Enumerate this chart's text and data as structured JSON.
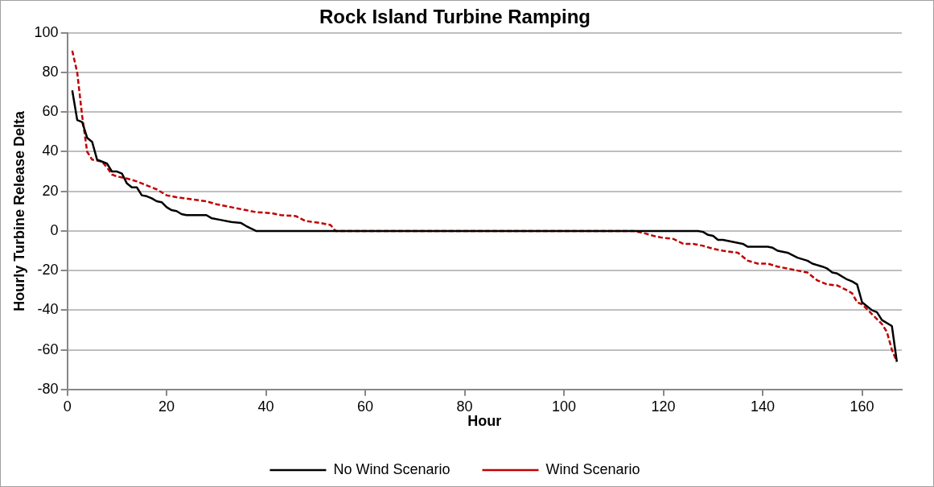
{
  "chart_data": {
    "type": "line",
    "title": "Rock Island Turbine Ramping",
    "xlabel": "Hour",
    "ylabel": "Hourly Turbine Release Delta",
    "xlim": [
      0,
      168
    ],
    "xticks": [
      0,
      20,
      40,
      60,
      80,
      100,
      120,
      140,
      160
    ],
    "ylim": [
      -80,
      100
    ],
    "yticks": [
      -80,
      -60,
      -40,
      -20,
      0,
      20,
      40,
      60,
      80,
      100
    ],
    "grid": "y",
    "legend": "bottom",
    "marker": "none",
    "series": [
      {
        "name": "No Wind Scenario",
        "color": "#000000",
        "line_style": "solid",
        "x": [
          1,
          2,
          3,
          4,
          5,
          6,
          7,
          8,
          9,
          10,
          11,
          12,
          13,
          14,
          15,
          16,
          17,
          18,
          19,
          20,
          21,
          22,
          23,
          24,
          28,
          29,
          31,
          33,
          35,
          36,
          38,
          127,
          128,
          129,
          130,
          131,
          132,
          134,
          136,
          137,
          141,
          142,
          143,
          145,
          147,
          149,
          150,
          152,
          153,
          154,
          155,
          157,
          158,
          159,
          160,
          161,
          162,
          163,
          164,
          166,
          167
        ],
        "values": [
          71,
          56,
          55,
          47,
          45,
          36,
          35,
          34,
          30,
          30,
          29,
          24,
          22,
          22,
          18,
          17.5,
          16.5,
          15,
          14.5,
          12,
          10.5,
          10,
          8.5,
          8,
          8,
          6.5,
          5.5,
          4.5,
          4,
          2.5,
          0,
          0,
          -0.5,
          -2,
          -2.5,
          -4.5,
          -4.5,
          -5.5,
          -6.5,
          -8,
          -8,
          -8.5,
          -10,
          -11,
          -13.5,
          -15,
          -16.5,
          -18,
          -19,
          -21,
          -21.5,
          -24.5,
          -25.5,
          -27,
          -36,
          -38,
          -40,
          -41,
          -45,
          -48,
          -66
        ]
      },
      {
        "name": "Wind Scenario",
        "color": "#c00000",
        "line_style": "dashed",
        "x": [
          1,
          2,
          3,
          4,
          5,
          6,
          7,
          8,
          9,
          10,
          12,
          14,
          16,
          18,
          20,
          22,
          25,
          28,
          30,
          33,
          36,
          38,
          41,
          43,
          46,
          48,
          51,
          53,
          54,
          114,
          116,
          118,
          120,
          122,
          124,
          126,
          128,
          130,
          132,
          135,
          137,
          139,
          141,
          143,
          145,
          147,
          149,
          151,
          153,
          155,
          157,
          158,
          159,
          160,
          162,
          164,
          165,
          166,
          167
        ],
        "values": [
          91,
          80,
          58,
          40,
          36,
          35.5,
          35,
          32,
          28.5,
          27.5,
          26.5,
          25,
          23,
          21,
          18,
          17,
          16,
          15,
          13.5,
          12,
          10.5,
          9.5,
          9,
          8,
          7.5,
          5,
          4,
          3,
          0,
          0,
          -1,
          -2.5,
          -3.5,
          -4,
          -6.5,
          -6.5,
          -7.5,
          -9,
          -10,
          -11,
          -15,
          -16.5,
          -16.5,
          -18,
          -19,
          -20,
          -21,
          -25,
          -27,
          -27.5,
          -30,
          -31.5,
          -36,
          -37,
          -42,
          -47,
          -51,
          -60,
          -66
        ]
      }
    ]
  }
}
